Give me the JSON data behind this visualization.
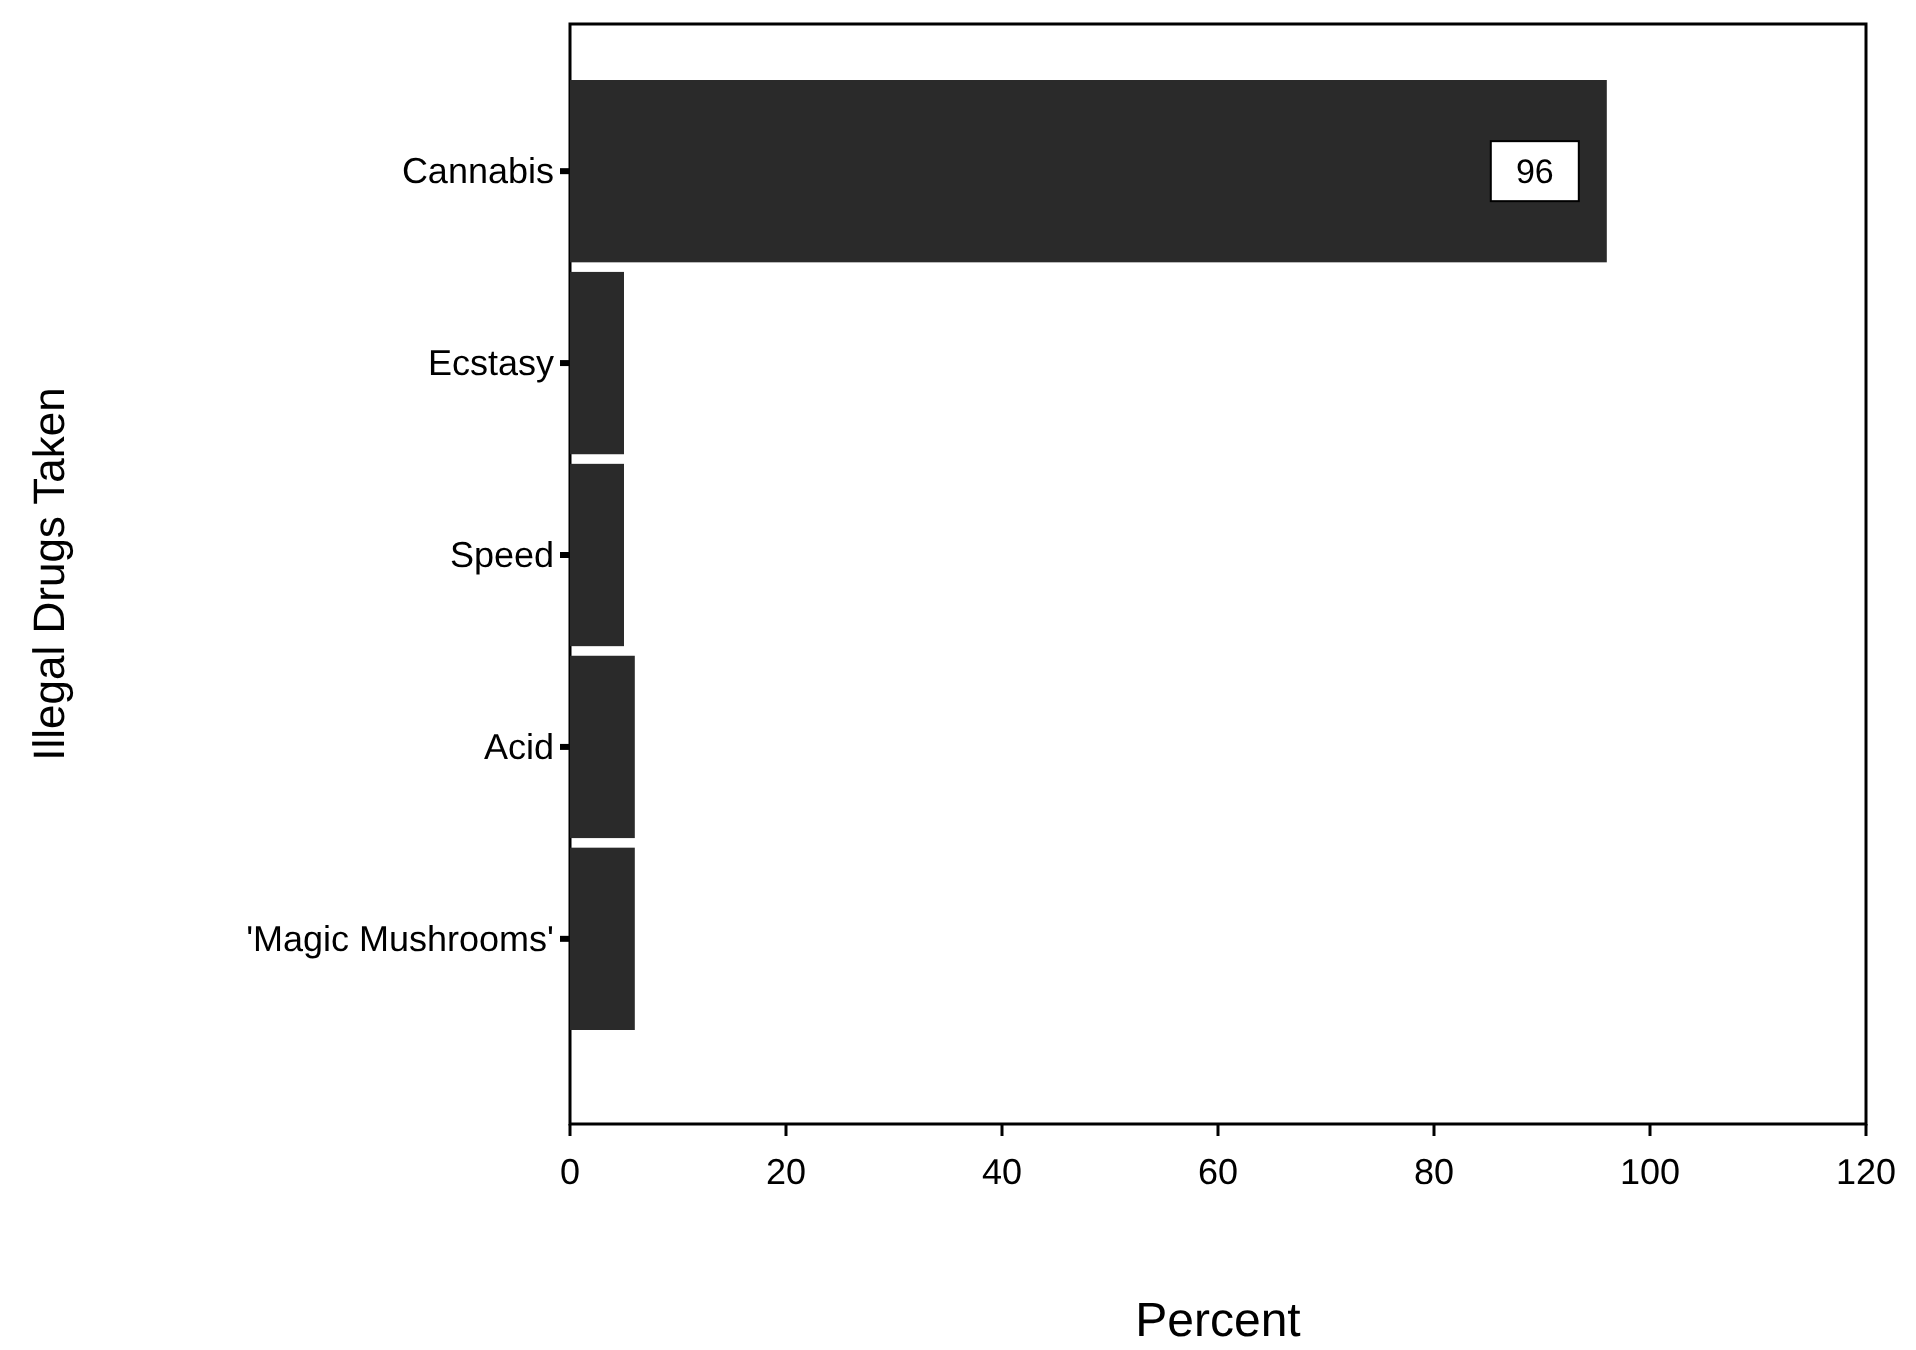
{
  "chart_data": {
    "type": "bar",
    "orientation": "horizontal",
    "xlabel": "Percent",
    "ylabel": "Illegal Drugs Taken",
    "categories": [
      "Cannabis",
      "Ecstasy",
      "Speed",
      "Acid",
      "'Magic Mushrooms'"
    ],
    "values": [
      96,
      5,
      5,
      6,
      6
    ],
    "color": "#2a2a2a",
    "value_labels": [
      "96",
      null,
      null,
      null,
      null
    ],
    "xlim": [
      0,
      120
    ],
    "xticks": [
      0,
      20,
      40,
      60,
      80,
      100,
      120
    ],
    "grid": false
  }
}
